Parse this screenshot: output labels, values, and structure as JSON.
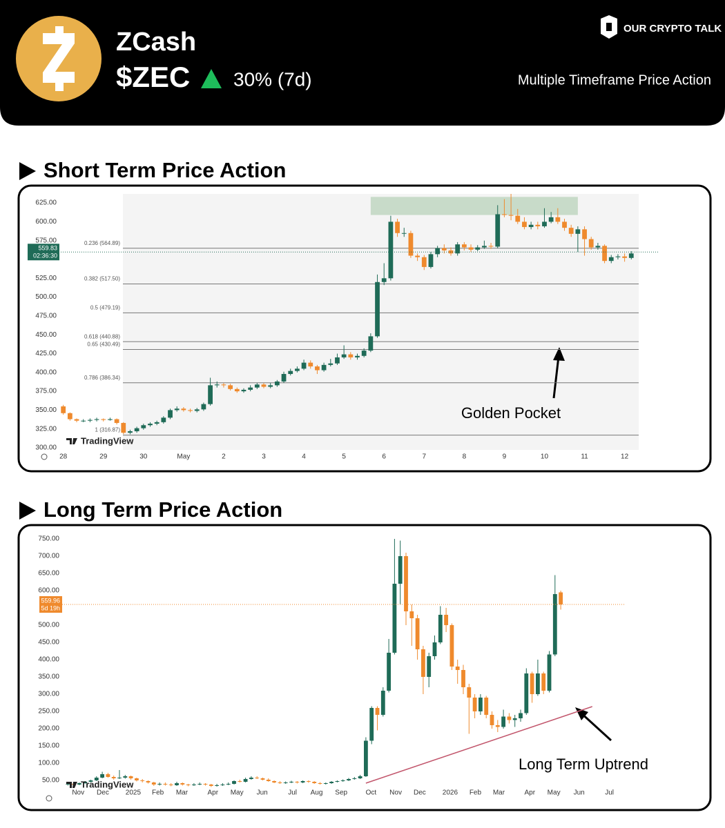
{
  "header": {
    "name": "ZCash",
    "ticker": "$ZEC",
    "change": "30% (7d)",
    "brand": "OUR CRYPTO TALK",
    "subtitle": "Multiple Timeframe Price Action"
  },
  "chart_data": [
    {
      "type": "candlestick",
      "title": "Short Term Price Action",
      "watermark": "TradingView",
      "annotation": "Golden Pocket",
      "up_color": "#1f6b57",
      "down_color": "#ef8a2d",
      "xlim": [
        -1,
        89
      ],
      "ylim": [
        300,
        637
      ],
      "xticks": [
        {
          "value": 0,
          "label": "28"
        },
        {
          "value": 6,
          "label": "29"
        },
        {
          "value": 12,
          "label": "30"
        },
        {
          "value": 18,
          "label": "May"
        },
        {
          "value": 24,
          "label": "2"
        },
        {
          "value": 30,
          "label": "3"
        },
        {
          "value": 36,
          "label": "4"
        },
        {
          "value": 42,
          "label": "5"
        },
        {
          "value": 48,
          "label": "6"
        },
        {
          "value": 54,
          "label": "7"
        },
        {
          "value": 60,
          "label": "8"
        },
        {
          "value": 66,
          "label": "9"
        },
        {
          "value": 72,
          "label": "10"
        },
        {
          "value": 78,
          "label": "11"
        },
        {
          "value": 84,
          "label": "12"
        }
      ],
      "yticks": [
        {
          "value": 300,
          "label": "300.00"
        },
        {
          "value": 325,
          "label": "325.00"
        },
        {
          "value": 350,
          "label": "350.00"
        },
        {
          "value": 375,
          "label": "375.00"
        },
        {
          "value": 400,
          "label": "400.00"
        },
        {
          "value": 425,
          "label": "425.00"
        },
        {
          "value": 450,
          "label": "450.00"
        },
        {
          "value": 475,
          "label": "475.00"
        },
        {
          "value": 500,
          "label": "500.00"
        },
        {
          "value": 525,
          "label": "525.00"
        },
        {
          "value": 575,
          "label": "575.00"
        },
        {
          "value": 600,
          "label": "600.00"
        },
        {
          "value": 625,
          "label": "625.00"
        }
      ],
      "levels": [
        {
          "value": 564.89,
          "label": "0.236 (564.89)"
        },
        {
          "value": 517.5,
          "label": "0.382 (517.50)"
        },
        {
          "value": 479.19,
          "label": "0.5 (479.19)"
        },
        {
          "value": 440.88,
          "label": "0.618 (440.88)"
        },
        {
          "value": 430.49,
          "label": "0.65 (430.49)"
        },
        {
          "value": 386.34,
          "label": "0.786 (386.34)"
        },
        {
          "value": 316.87,
          "label": "1 (316.87)"
        }
      ],
      "zone": {
        "x": [
          46,
          77
        ],
        "y": [
          609,
          633
        ],
        "color": "#c8dbc9"
      },
      "price_line": {
        "value": 559.83,
        "timer": "02:36:30",
        "color": "#1f6b57"
      },
      "open": [
        355,
        346,
        338,
        336,
        336,
        337,
        338,
        337,
        338,
        333,
        320,
        322,
        326,
        330,
        332,
        334,
        340,
        350,
        352,
        350,
        349,
        351,
        358,
        383,
        384,
        383,
        378,
        375,
        377,
        380,
        384,
        381,
        383,
        388,
        398,
        402,
        405,
        413,
        408,
        403,
        410,
        412,
        420,
        424,
        420,
        422,
        429,
        448,
        520,
        525,
        600,
        585,
        585,
        555,
        553,
        540,
        557,
        565,
        562,
        558,
        570,
        566,
        563,
        566,
        568,
        567,
        610,
        609,
        608,
        600,
        593,
        596,
        594,
        600,
        606,
        600,
        592,
        584,
        590,
        577,
        566,
        568,
        548,
        553,
        554,
        552
      ],
      "high": [
        357,
        347,
        339,
        338,
        339,
        340,
        339,
        340,
        339,
        334,
        324,
        328,
        332,
        334,
        336,
        342,
        352,
        355,
        354,
        352,
        353,
        360,
        393,
        388,
        386,
        385,
        380,
        379,
        383,
        386,
        386,
        386,
        390,
        401,
        405,
        408,
        417,
        416,
        410,
        413,
        418,
        425,
        436,
        427,
        425,
        432,
        452,
        530,
        545,
        608,
        604,
        592,
        588,
        558,
        556,
        560,
        568,
        570,
        566,
        573,
        573,
        570,
        569,
        575,
        572,
        622,
        630,
        637,
        617,
        606,
        600,
        600,
        618,
        613,
        618,
        604,
        596,
        594,
        594,
        580,
        572,
        570,
        556,
        557,
        558,
        561
      ],
      "low": [
        344,
        336,
        334,
        334,
        334,
        335,
        335,
        336,
        331,
        318,
        318,
        320,
        324,
        328,
        330,
        332,
        338,
        348,
        348,
        347,
        347,
        349,
        356,
        380,
        380,
        376,
        373,
        373,
        375,
        378,
        379,
        379,
        381,
        386,
        396,
        400,
        403,
        405,
        398,
        401,
        408,
        410,
        418,
        417,
        417,
        420,
        427,
        446,
        516,
        522,
        580,
        580,
        552,
        548,
        536,
        538,
        553,
        558,
        555,
        555,
        562,
        560,
        561,
        564,
        564,
        565,
        606,
        602,
        597,
        590,
        590,
        590,
        592,
        598,
        597,
        588,
        580,
        560,
        555,
        563,
        563,
        545,
        545,
        550,
        547,
        550
      ],
      "close": [
        346,
        338,
        336,
        336,
        337,
        338,
        337,
        338,
        333,
        320,
        322,
        326,
        330,
        332,
        334,
        340,
        350,
        352,
        350,
        349,
        351,
        358,
        383,
        384,
        383,
        378,
        375,
        377,
        380,
        384,
        381,
        383,
        388,
        398,
        402,
        405,
        413,
        408,
        403,
        410,
        412,
        420,
        424,
        420,
        422,
        429,
        448,
        520,
        525,
        600,
        585,
        585,
        555,
        553,
        540,
        557,
        565,
        562,
        558,
        570,
        566,
        563,
        566,
        568,
        567,
        610,
        609,
        608,
        600,
        593,
        596,
        594,
        600,
        606,
        600,
        592,
        584,
        590,
        577,
        566,
        568,
        548,
        553,
        554,
        552,
        558
      ]
    },
    {
      "type": "candlestick",
      "title": "Long Term Price Action",
      "watermark": "TradingView",
      "annotation": "Long Term Uptrend",
      "up_color": "#1f6b57",
      "down_color": "#ef8a2d",
      "xlim": [
        -1,
        99
      ],
      "ylim": [
        40,
        770
      ],
      "xticks": [
        {
          "value": 1.8,
          "label": "Nov"
        },
        {
          "value": 6.1,
          "label": "Dec"
        },
        {
          "value": 11.4,
          "label": "2025"
        },
        {
          "value": 15.7,
          "label": "Feb"
        },
        {
          "value": 19.9,
          "label": "Mar"
        },
        {
          "value": 25.3,
          "label": "Apr"
        },
        {
          "value": 29.5,
          "label": "May"
        },
        {
          "value": 33.9,
          "label": "Jun"
        },
        {
          "value": 39.2,
          "label": "Jul"
        },
        {
          "value": 43.4,
          "label": "Aug"
        },
        {
          "value": 47.7,
          "label": "Sep"
        },
        {
          "value": 52.9,
          "label": "Oct"
        },
        {
          "value": 57.2,
          "label": "Nov"
        },
        {
          "value": 61.4,
          "label": "Dec"
        },
        {
          "value": 66.7,
          "label": "2026"
        },
        {
          "value": 71.1,
          "label": "Feb"
        },
        {
          "value": 75.2,
          "label": "Mar"
        },
        {
          "value": 80.6,
          "label": "Apr"
        },
        {
          "value": 84.8,
          "label": "May"
        },
        {
          "value": 89.2,
          "label": "Jun"
        },
        {
          "value": 94.5,
          "label": "Jul"
        }
      ],
      "yticks": [
        {
          "value": 50,
          "label": "50.00"
        },
        {
          "value": 100,
          "label": "100.00"
        },
        {
          "value": 150,
          "label": "150.00"
        },
        {
          "value": 200,
          "label": "200.00"
        },
        {
          "value": 250,
          "label": "250.00"
        },
        {
          "value": 300,
          "label": "300.00"
        },
        {
          "value": 350,
          "label": "350.00"
        },
        {
          "value": 400,
          "label": "400.00"
        },
        {
          "value": 450,
          "label": "450.00"
        },
        {
          "value": 500,
          "label": "500.00"
        },
        {
          "value": 600,
          "label": "600.00"
        },
        {
          "value": 650,
          "label": "650.00"
        },
        {
          "value": 700,
          "label": "700.00"
        },
        {
          "value": 750,
          "label": "750.00"
        }
      ],
      "price_line": {
        "value": 559.96,
        "timer": "5d 19h",
        "color": "#ef8a2d"
      },
      "trendline": {
        "x": [
          52,
          91.5
        ],
        "y": [
          42,
          264
        ],
        "color": "#c2566c"
      },
      "open": [
        38,
        40,
        38,
        42,
        46,
        50,
        58,
        68,
        60,
        56,
        58,
        62,
        56,
        50,
        48,
        44,
        38,
        40,
        38,
        36,
        42,
        38,
        36,
        38,
        40,
        38,
        34,
        36,
        38,
        40,
        48,
        46,
        54,
        58,
        56,
        52,
        48,
        44,
        42,
        44,
        46,
        44,
        48,
        46,
        42,
        40,
        42,
        46,
        48,
        50,
        54,
        56,
        62,
        165,
        260,
        240,
        310,
        420,
        620,
        700,
        540,
        520,
        430,
        350,
        410,
        450,
        530,
        500,
        380,
        370,
        320,
        290,
        250,
        290,
        240,
        210,
        205,
        235,
        225,
        230,
        245,
        360,
        300,
        360,
        310,
        415,
        595
      ],
      "high": [
        43,
        42,
        44,
        48,
        52,
        62,
        75,
        72,
        64,
        80,
        66,
        64,
        58,
        54,
        50,
        46,
        44,
        44,
        42,
        46,
        44,
        40,
        42,
        44,
        42,
        40,
        40,
        42,
        44,
        50,
        52,
        58,
        62,
        62,
        58,
        56,
        50,
        48,
        47,
        49,
        48,
        50,
        50,
        48,
        45,
        44,
        48,
        50,
        53,
        57,
        60,
        66,
        175,
        265,
        265,
        320,
        460,
        750,
        745,
        710,
        560,
        530,
        440,
        420,
        470,
        555,
        550,
        505,
        400,
        385,
        330,
        300,
        300,
        295,
        250,
        225,
        255,
        245,
        240,
        255,
        375,
        365,
        400,
        365,
        425,
        645,
        600
      ],
      "low": [
        35,
        35,
        36,
        40,
        44,
        48,
        56,
        58,
        52,
        54,
        55,
        52,
        47,
        44,
        41,
        34,
        35,
        35,
        33,
        34,
        35,
        33,
        34,
        36,
        35,
        31,
        32,
        34,
        36,
        38,
        44,
        44,
        52,
        54,
        50,
        46,
        42,
        40,
        40,
        42,
        41,
        42,
        43,
        40,
        38,
        38,
        40,
        44,
        46,
        48,
        52,
        54,
        60,
        155,
        195,
        235,
        305,
        415,
        560,
        500,
        440,
        400,
        300,
        320,
        400,
        445,
        480,
        370,
        330,
        300,
        185,
        230,
        240,
        230,
        200,
        190,
        200,
        215,
        205,
        220,
        240,
        275,
        295,
        300,
        305,
        410,
        545
      ],
      "close": [
        40,
        38,
        42,
        46,
        50,
        58,
        68,
        60,
        56,
        58,
        62,
        56,
        50,
        48,
        44,
        38,
        40,
        38,
        36,
        42,
        38,
        36,
        38,
        40,
        38,
        34,
        36,
        38,
        40,
        48,
        46,
        54,
        58,
        56,
        52,
        48,
        44,
        42,
        44,
        46,
        44,
        48,
        46,
        42,
        40,
        42,
        46,
        48,
        50,
        54,
        56,
        62,
        165,
        260,
        240,
        310,
        420,
        620,
        700,
        540,
        520,
        430,
        350,
        410,
        450,
        530,
        500,
        380,
        370,
        320,
        290,
        250,
        290,
        240,
        210,
        205,
        235,
        225,
        230,
        245,
        360,
        300,
        360,
        310,
        415,
        590,
        560
      ]
    }
  ]
}
